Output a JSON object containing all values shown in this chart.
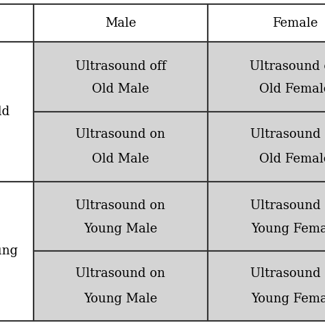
{
  "col_headers": [
    "",
    "Male",
    "Female"
  ],
  "row_headers": [
    "Old",
    "Young"
  ],
  "cells_old_male": [
    [
      "Ultrasound off",
      "Old Male"
    ],
    [
      "Ultrasound on",
      "Old Male"
    ]
  ],
  "cells_old_female": [
    [
      "Ultrasound off",
      "Old Female"
    ],
    [
      "Ultrasound on",
      "Old Female"
    ]
  ],
  "cells_young_male": [
    [
      "Ultrasound on",
      "Young Male"
    ],
    [
      "Ultrasound on",
      "Young Male"
    ]
  ],
  "cells_young_female": [
    [
      "Ultrasound on",
      "Young Female"
    ],
    [
      "Ultrasound on",
      "Young Female"
    ]
  ],
  "cell_bg": "#d4d4d4",
  "header_bg": "#ffffff",
  "border_color": "#333333",
  "text_color": "#000000",
  "fig_bg": "#ffffff",
  "font_size": 13,
  "header_font_size": 13
}
